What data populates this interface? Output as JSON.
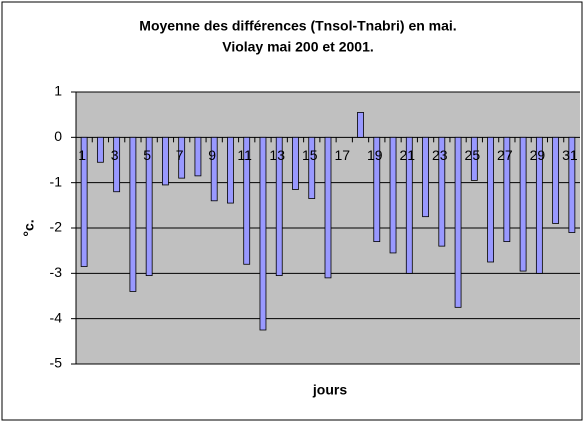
{
  "chart_data": {
    "type": "bar",
    "title": "Moyenne des différences (Tnsol-Tnabri) en mai.",
    "subtitle": "Violay mai 200 et 2001.",
    "x_label": "jours",
    "y_label": "°c.",
    "categories": [
      "1",
      null,
      "3",
      null,
      "5",
      null,
      "7",
      null,
      "9",
      null,
      "11",
      null,
      "13",
      null,
      "15",
      null,
      "17",
      null,
      "19",
      null,
      "21",
      null,
      "23",
      null,
      "25",
      null,
      "27",
      null,
      "29",
      null,
      "31"
    ],
    "values": [
      -2.85,
      -0.55,
      -1.2,
      -3.4,
      -3.05,
      -1.05,
      -0.9,
      -0.85,
      -1.4,
      -1.45,
      -2.8,
      -4.25,
      -3.05,
      -1.15,
      -1.35,
      -3.1,
      0,
      0.55,
      -2.3,
      -2.55,
      -3.0,
      -1.75,
      -2.4,
      -3.75,
      -0.95,
      -2.75,
      -2.3,
      -2.95,
      -3.0,
      -1.9,
      -2.1
    ],
    "color": "#9999ff",
    "ylim": [
      -5,
      1
    ],
    "yticks": [
      -5,
      -4,
      -3,
      -2,
      -1,
      0,
      1
    ],
    "grid": true
  }
}
